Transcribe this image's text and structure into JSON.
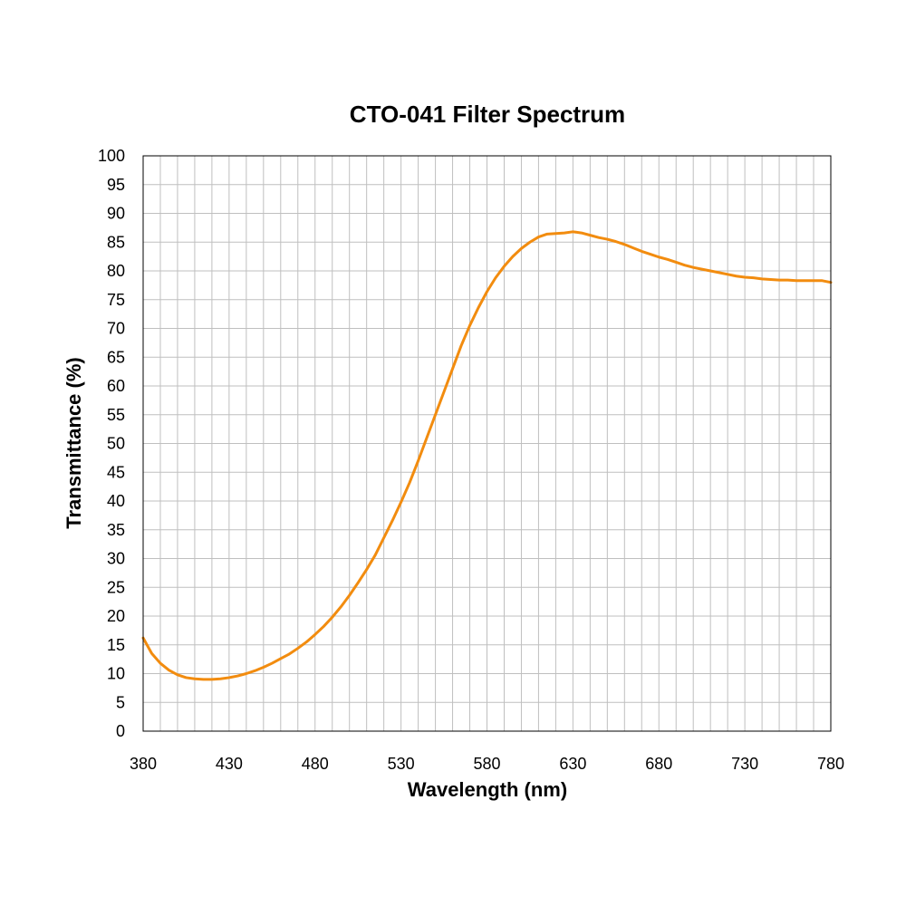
{
  "chart_data": {
    "type": "line",
    "title": "CTO-041 Filter Spectrum",
    "xlabel": "Wavelength (nm)",
    "ylabel": "Transmittance (%)",
    "xlim": [
      380,
      780
    ],
    "ylim": [
      0,
      100
    ],
    "x_ticks": [
      380,
      430,
      480,
      530,
      580,
      630,
      680,
      730,
      780
    ],
    "y_ticks": [
      0,
      5,
      10,
      15,
      20,
      25,
      30,
      35,
      40,
      45,
      50,
      55,
      60,
      65,
      70,
      75,
      80,
      85,
      90,
      95,
      100
    ],
    "x_minor_step": 10,
    "grid": true,
    "legend": "none",
    "series": [
      {
        "color": "#F28C0F",
        "x": [
          380,
          385,
          390,
          395,
          400,
          405,
          410,
          415,
          420,
          425,
          430,
          435,
          440,
          445,
          450,
          455,
          460,
          465,
          470,
          475,
          480,
          485,
          490,
          495,
          500,
          505,
          510,
          515,
          520,
          525,
          530,
          535,
          540,
          545,
          550,
          555,
          560,
          565,
          570,
          575,
          580,
          585,
          590,
          595,
          600,
          605,
          610,
          615,
          620,
          625,
          630,
          635,
          640,
          645,
          650,
          655,
          660,
          665,
          670,
          675,
          680,
          685,
          690,
          695,
          700,
          705,
          710,
          715,
          720,
          725,
          730,
          735,
          740,
          745,
          750,
          755,
          760,
          765,
          770,
          775,
          780
        ],
        "y": [
          16.2,
          13.5,
          11.8,
          10.6,
          9.8,
          9.3,
          9.1,
          9.0,
          9.0,
          9.1,
          9.3,
          9.6,
          10.0,
          10.5,
          11.1,
          11.8,
          12.6,
          13.4,
          14.4,
          15.5,
          16.8,
          18.2,
          19.8,
          21.6,
          23.6,
          25.8,
          28.1,
          30.6,
          33.6,
          36.6,
          39.8,
          43.2,
          47.0,
          51.0,
          55.0,
          59.0,
          63.0,
          67.0,
          70.5,
          73.6,
          76.4,
          78.8,
          80.8,
          82.5,
          83.9,
          85.0,
          85.9,
          86.4,
          86.5,
          86.6,
          86.8,
          86.6,
          86.2,
          85.8,
          85.5,
          85.1,
          84.6,
          84.0,
          83.4,
          82.9,
          82.4,
          82.0,
          81.5,
          81.0,
          80.6,
          80.3,
          80.0,
          79.7,
          79.4,
          79.1,
          78.9,
          78.8,
          78.6,
          78.5,
          78.4,
          78.4,
          78.3,
          78.3,
          78.3,
          78.3,
          78.0
        ]
      }
    ]
  }
}
